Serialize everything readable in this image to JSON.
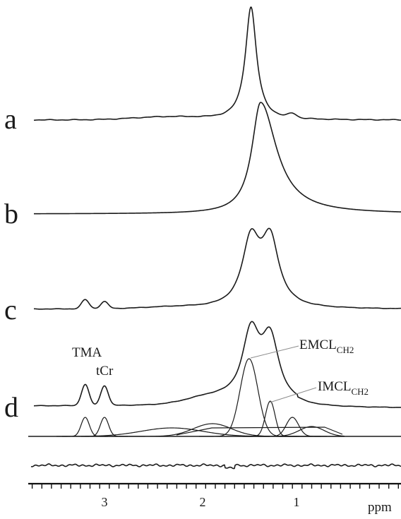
{
  "chart_data": {
    "type": "line",
    "xlabel": "ppm",
    "x_reversed": true,
    "xlim": [
      3.75,
      0
    ],
    "x_ticks": [
      3,
      2,
      1
    ],
    "x_tick_labels": [
      "3",
      "2",
      "1"
    ],
    "spectra": [
      {
        "label": "a",
        "peaks": [
          {
            "center": 1.48,
            "height": 1.0
          },
          {
            "center": 1.05,
            "height": 0.08
          }
        ]
      },
      {
        "label": "b",
        "peaks": [
          {
            "center": 1.38,
            "height": 1.0
          }
        ]
      },
      {
        "label": "c",
        "peaks": [
          {
            "center": 3.2,
            "height": 0.09
          },
          {
            "center": 3.0,
            "height": 0.07
          },
          {
            "center": 1.48,
            "height": 0.84
          },
          {
            "center": 1.28,
            "height": 0.82
          }
        ]
      },
      {
        "label": "d",
        "peaks": [
          {
            "center": 3.2,
            "height": 0.2
          },
          {
            "center": 3.0,
            "height": 0.2
          },
          {
            "center": 1.48,
            "height": 0.85
          },
          {
            "center": 1.28,
            "height": 0.8
          }
        ]
      }
    ],
    "fit_components": [
      {
        "name": "TMA",
        "center": 3.2
      },
      {
        "name": "tCr",
        "center": 3.0
      },
      {
        "name": "EMCL",
        "subscript": "CH2",
        "center": 1.5
      },
      {
        "name": "IMCL",
        "subscript": "CH2",
        "center": 1.28
      },
      {
        "name": "",
        "center": 2.3
      },
      {
        "name": "",
        "center": 1.88
      },
      {
        "name": "",
        "center": 1.05
      },
      {
        "name": "",
        "center": 0.85
      }
    ],
    "annotations": [
      {
        "text": "TMA"
      },
      {
        "text": "tCr"
      },
      {
        "text": "EMCL",
        "subscript": "CH2"
      },
      {
        "text": "IMCL",
        "subscript": "CH2"
      }
    ]
  }
}
